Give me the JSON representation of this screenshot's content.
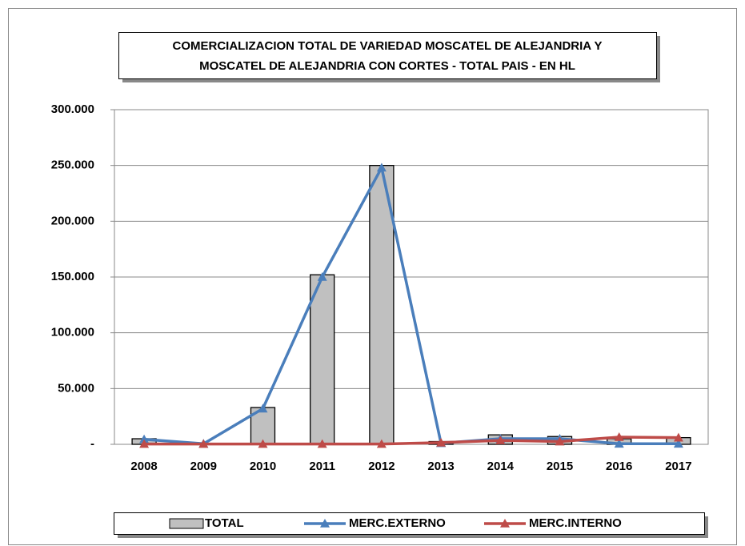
{
  "chart_data": {
    "type": "bar_line",
    "title": [
      "COMERCIALIZACION TOTAL DE VARIEDAD MOSCATEL DE ALEJANDRIA Y",
      "MOSCATEL DE ALEJANDRIA CON CORTES - TOTAL PAIS - EN HL"
    ],
    "categories": [
      "2008",
      "2009",
      "2010",
      "2011",
      "2012",
      "2013",
      "2014",
      "2015",
      "2016",
      "2017"
    ],
    "series": [
      {
        "name": "TOTAL",
        "type": "bar",
        "color": "#c0c0c0",
        "values": [
          5000,
          500,
          33000,
          152000,
          250000,
          2500,
          8500,
          7000,
          5000,
          6000
        ]
      },
      {
        "name": "MERC.EXTERNO",
        "type": "line",
        "color": "#4a7ebb",
        "values": [
          4500,
          500,
          32000,
          150000,
          248000,
          1000,
          5000,
          5000,
          500,
          500
        ]
      },
      {
        "name": "MERC.INTERNO",
        "type": "line",
        "color": "#be4b48",
        "values": [
          300,
          300,
          300,
          300,
          300,
          1500,
          3500,
          2500,
          6500,
          6000
        ]
      }
    ],
    "ylim": [
      0,
      300000
    ],
    "yticks": [
      {
        "value": 0,
        "label": "-"
      },
      {
        "value": 50000,
        "label": "50.000"
      },
      {
        "value": 100000,
        "label": "100.000"
      },
      {
        "value": 150000,
        "label": "150.000"
      },
      {
        "value": 200000,
        "label": "200.000"
      },
      {
        "value": 250000,
        "label": "250.000"
      },
      {
        "value": 300000,
        "label": "300.000"
      }
    ],
    "grid": true
  }
}
